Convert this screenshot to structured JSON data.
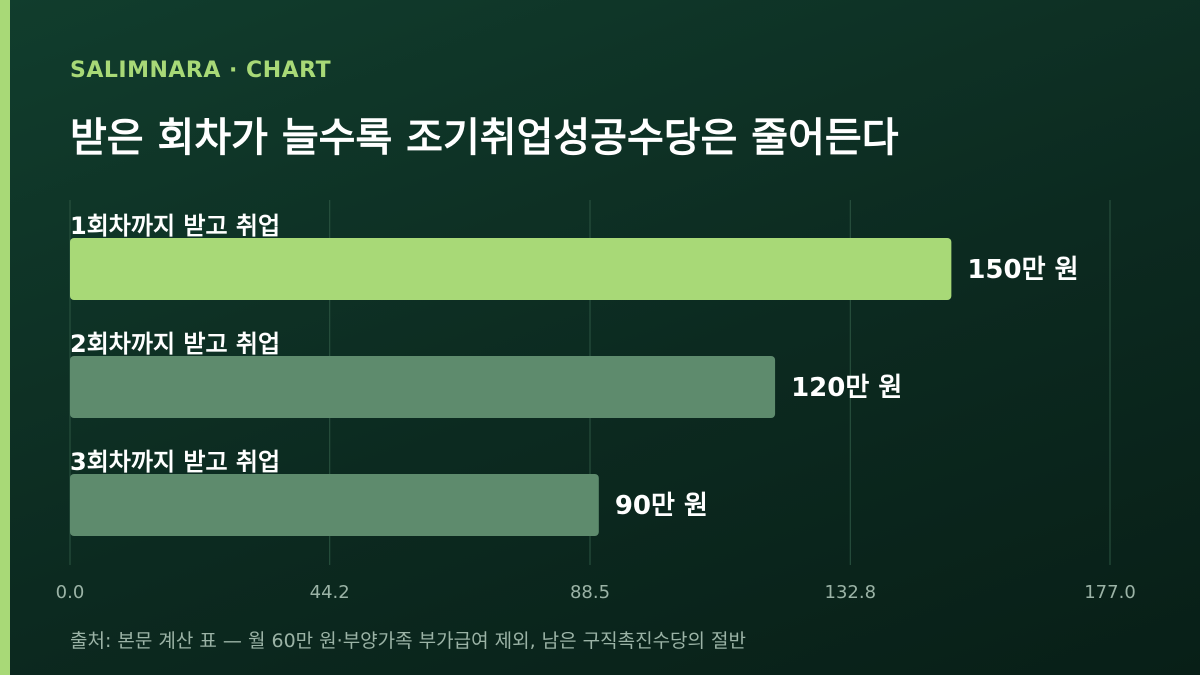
{
  "header": {
    "kicker": "SALIMNARA · CHART",
    "title": "받은 회차가 늘수록 조기취업성공수당은 줄어든다"
  },
  "chart_data": {
    "type": "bar",
    "orientation": "horizontal",
    "categories": [
      "1회차까지 받고 취업",
      "2회차까지 받고 취업",
      "3회차까지 받고 취업"
    ],
    "values": [
      150,
      120,
      90
    ],
    "value_labels": [
      "150만 원",
      "120만 원",
      "90만 원"
    ],
    "xlim": [
      0,
      177
    ],
    "x_ticks": [
      "0.0",
      "44.2",
      "88.5",
      "132.8",
      "177.0"
    ],
    "grid": true,
    "colors": {
      "highlight": "#a8d977",
      "default": "#5e8b6d",
      "grid": "#2c5542",
      "tick": "#9bb3a6"
    }
  },
  "footer": {
    "source": "출처: 본문 계산 표 — 월 60만 원·부양가족 부가급여 제외, 남은 구직촉진수당의 절반"
  }
}
